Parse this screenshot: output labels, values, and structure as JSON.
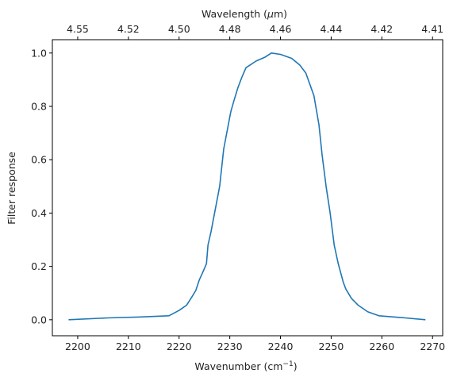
{
  "chart_data": {
    "type": "line",
    "title": "",
    "xlabel": "Wavenumber (cm",
    "xlabel_sup": "−1",
    "xlabel_close": ")",
    "ylabel": "Filter response",
    "top_xlabel": "Wavelength (",
    "top_xlabel_mu": "μ",
    "top_xlabel_close": "m)",
    "xlim": [
      2195,
      2272
    ],
    "ylim": [
      -0.06,
      1.05
    ],
    "x_ticks": [
      "2200",
      "2210",
      "2220",
      "2230",
      "2240",
      "2250",
      "2260",
      "2270"
    ],
    "x_tick_values": [
      2200,
      2210,
      2220,
      2230,
      2240,
      2250,
      2260,
      2270
    ],
    "y_ticks": [
      "0.0",
      "0.2",
      "0.4",
      "0.6",
      "0.8",
      "1.0"
    ],
    "y_tick_values": [
      0.0,
      0.2,
      0.4,
      0.6,
      0.8,
      1.0
    ],
    "top_ticks": [
      "4.55",
      "4.52",
      "4.50",
      "4.48",
      "4.46",
      "4.44",
      "4.42",
      "4.41"
    ],
    "top_tick_values": [
      2200,
      2210,
      2220,
      2230,
      2240,
      2250,
      2260,
      2270
    ],
    "series": [
      {
        "color": "#1f77b4",
        "x": [
          2198.2,
          2206,
          2212,
          2218,
          2220,
          2221.5,
          2222.5,
          2223.3,
          2224.0,
          2224.6,
          2225.4,
          2225.7,
          2226.3,
          2227.2,
          2228.0,
          2228.8,
          2229.6,
          2230.2,
          2230.8,
          2231.6,
          2232.4,
          2233.2,
          2235.2,
          2237.0,
          2238.2,
          2240.0,
          2242.2,
          2243.8,
          2245.0,
          2246.6,
          2247.6,
          2248.2,
          2249.0,
          2249.8,
          2250.6,
          2251.4,
          2252.4,
          2252.9,
          2254.0,
          2255.3,
          2257.2,
          2259.4,
          2264.0,
          2268.6
        ],
        "y": [
          0.0,
          0.007,
          0.01,
          0.015,
          0.035,
          0.055,
          0.085,
          0.11,
          0.15,
          0.175,
          0.21,
          0.28,
          0.33,
          0.42,
          0.5,
          0.64,
          0.72,
          0.78,
          0.82,
          0.87,
          0.91,
          0.945,
          0.97,
          0.985,
          1.0,
          0.995,
          0.98,
          0.955,
          0.925,
          0.84,
          0.73,
          0.62,
          0.5,
          0.4,
          0.28,
          0.21,
          0.14,
          0.115,
          0.08,
          0.055,
          0.03,
          0.015,
          0.008,
          0.0
        ]
      }
    ],
    "grid": false,
    "legend": "none"
  }
}
